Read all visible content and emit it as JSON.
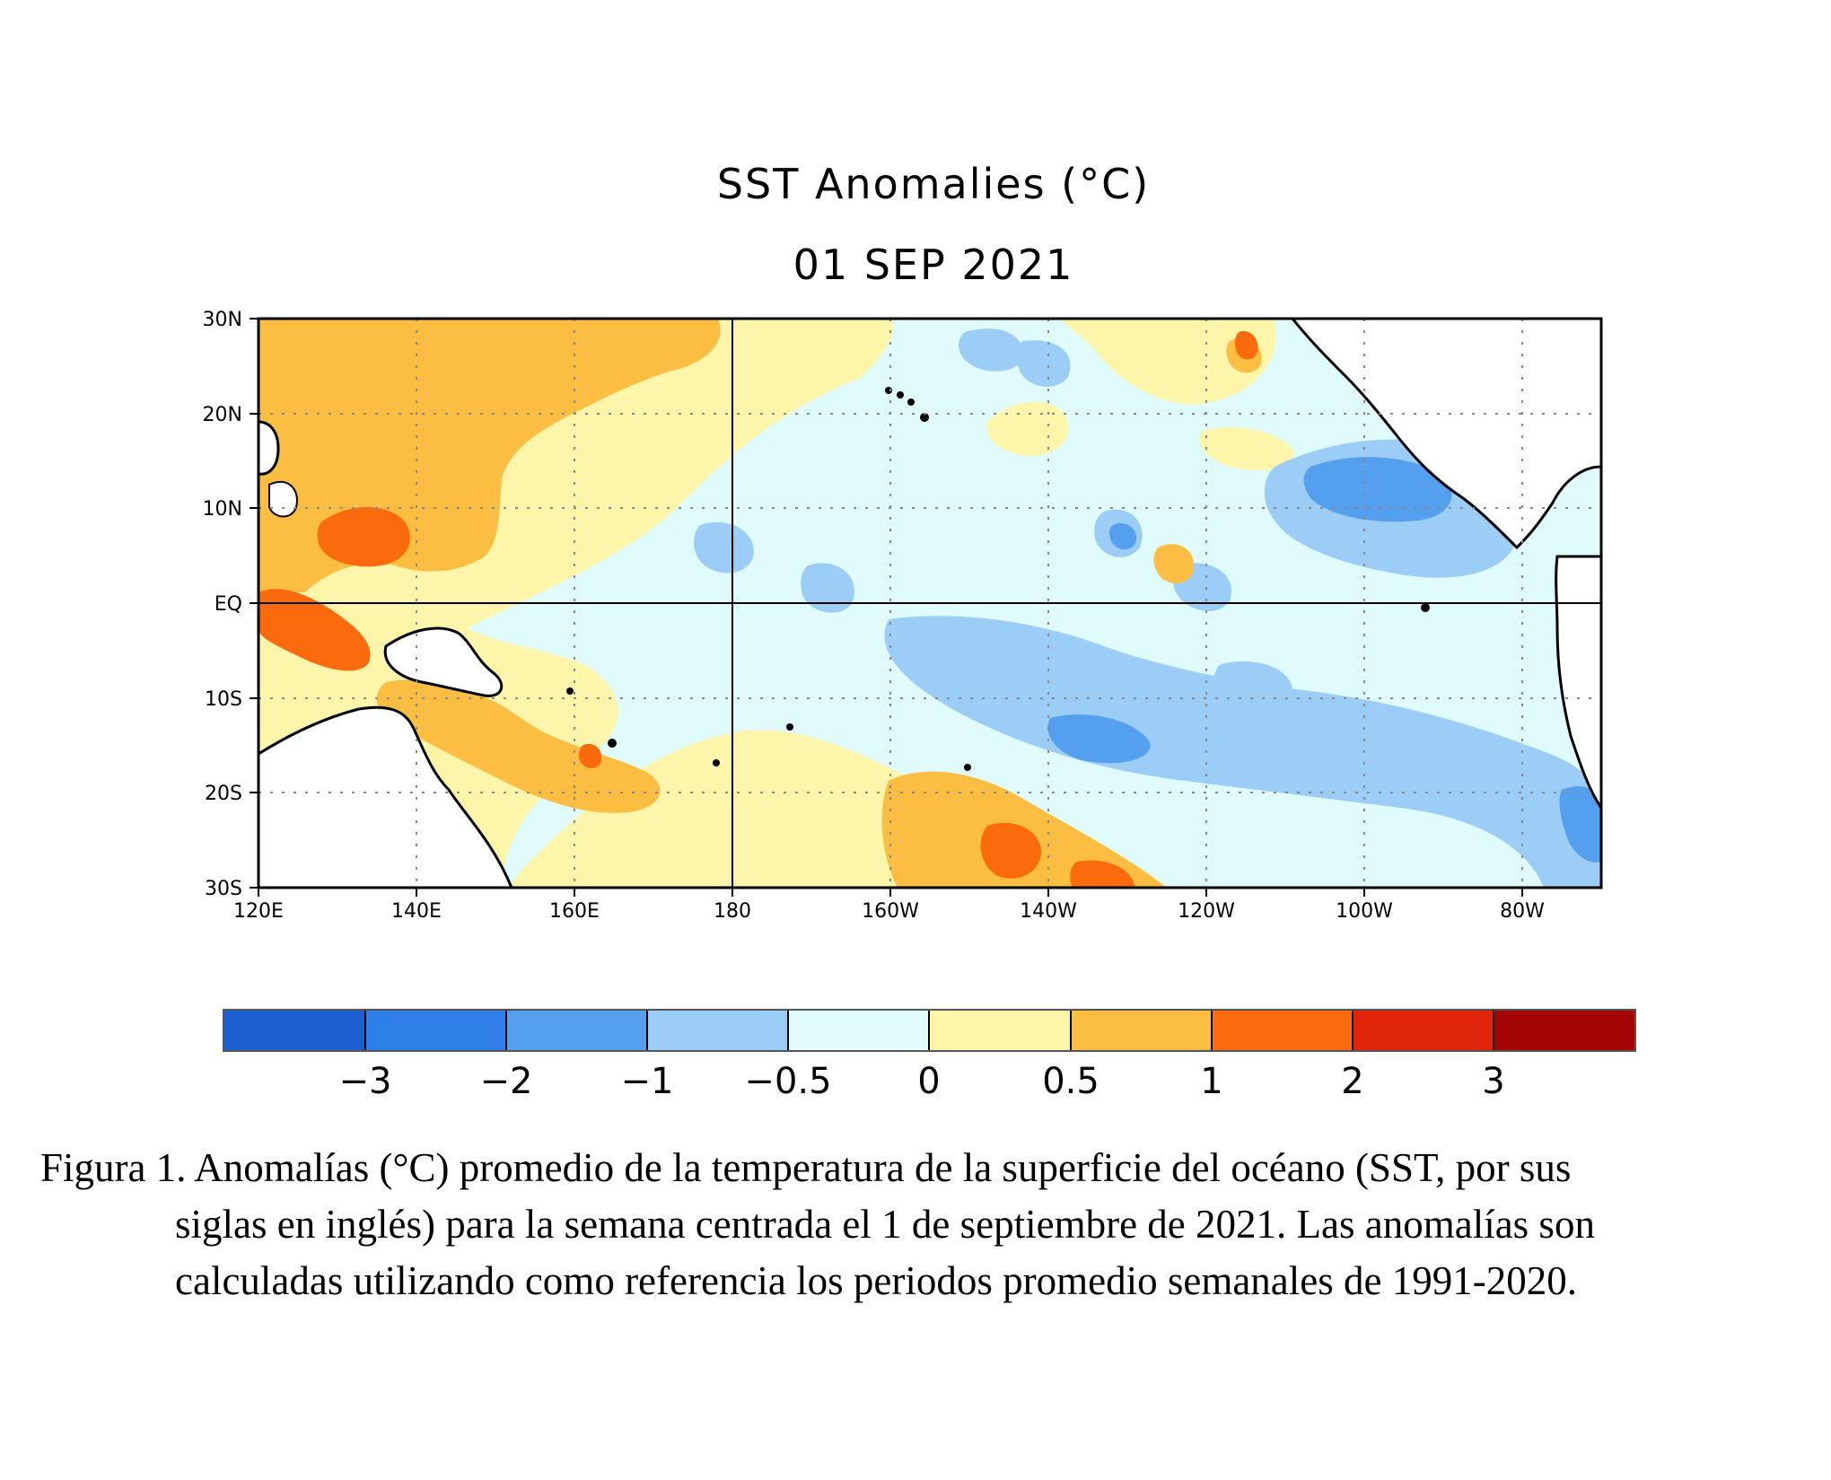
{
  "title": {
    "line1": "SST Anomalies (°C)",
    "line2": "01 SEP 2021"
  },
  "map": {
    "lon_range": [
      120,
      290
    ],
    "lat_range": [
      -30,
      30
    ],
    "lat_labels": [
      "30N",
      "20N",
      "10N",
      "EQ",
      "10S",
      "20S",
      "30S"
    ],
    "lon_labels": [
      "120E",
      "140E",
      "160E",
      "180",
      "160W",
      "140W",
      "120W",
      "100W",
      "80W"
    ]
  },
  "colorbar": {
    "colors": [
      "#1c5fd0",
      "#2f7fe8",
      "#55a0ee",
      "#9ccdf7",
      "#e0fbfc",
      "#fdf5a9",
      "#fbbe43",
      "#fb6a0c",
      "#e1250a",
      "#a30505"
    ],
    "tick_labels": [
      "−3",
      "−2",
      "−1",
      "−0.5",
      "0",
      "0.5",
      "1",
      "2",
      "3"
    ]
  },
  "caption": {
    "line1": "Figura 1. Anomalías (°C) promedio de la temperatura de la superficie del océano (SST, por sus",
    "line2": "siglas en inglés) para la semana centrada el 1 de septiembre de 2021. Las anomalías son",
    "line3": "calculadas utilizando como referencia los periodos promedio semanales de 1991-2020."
  }
}
